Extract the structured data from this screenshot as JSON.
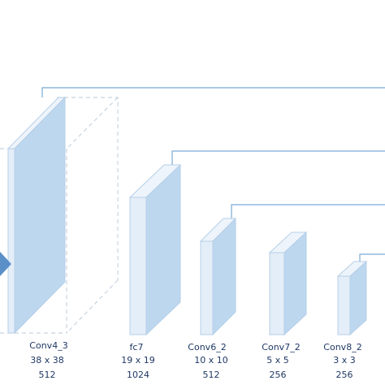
{
  "nodes": [
    {
      "label": "Conv4_3",
      "size": "38 x 38",
      "channels": "512"
    },
    {
      "label": "fc7",
      "size": "19 x 19",
      "channels": "1024"
    },
    {
      "label": "Conv6_2",
      "size": "10 x 10",
      "channels": "512"
    },
    {
      "label": "Conv7_2",
      "size": "5 x 5",
      "channels": "256"
    },
    {
      "label": "Conv8_2",
      "size": "3 x 3",
      "channels": "256"
    }
  ]
}
